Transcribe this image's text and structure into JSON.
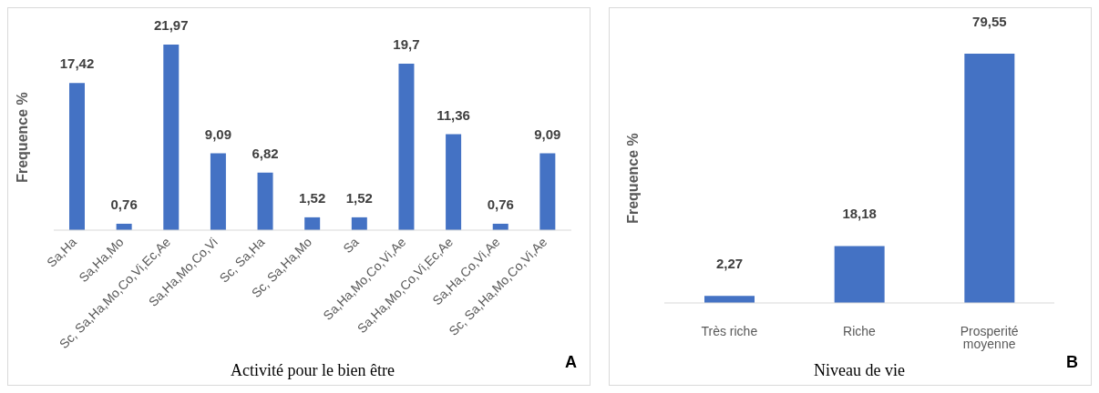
{
  "chart_data": [
    {
      "type": "bar",
      "xlabel": "Activité pour le bien être",
      "ylabel": "Frequence %",
      "categories": [
        "Sa,Ha",
        "Sa,Ha,Mo",
        "Sc, Sa,Ha,Mo,Co,Vi,Ec,Ae",
        "Sa,Ha,Mo,Co,Vi",
        "Sc, Sa,Ha",
        "Sc, Sa,Ha,Mo",
        "Sa",
        "Sa,Ha,Mo,Co,Vi,Ae",
        "Sa,Ha,Mo,Co,Vi,Ec,Ae",
        "Sa,Ha,Co,Vi,Ae",
        "Sc, Sa,Ha,Mo,Co,Vi,Ae"
      ],
      "values": [
        17.42,
        0.76,
        21.97,
        9.09,
        6.82,
        1.52,
        1.52,
        19.7,
        11.36,
        0.76,
        9.09
      ],
      "value_labels": [
        "17,42",
        "0,76",
        "21,97",
        "9,09",
        "6,82",
        "1,52",
        "1,52",
        "19,7",
        "11,36",
        "0,76",
        "9,09"
      ],
      "color": "#4472c4",
      "annotations": [
        "A"
      ]
    },
    {
      "type": "bar",
      "xlabel": "Niveau de vie",
      "ylabel": "Frequence %",
      "categories": [
        "Très riche",
        "Riche",
        "Prosperité moyenne"
      ],
      "values": [
        2.27,
        18.18,
        79.55
      ],
      "value_labels": [
        "2,27",
        "18,18",
        "79,55"
      ],
      "color": "#4472c4",
      "annotations": [
        "B"
      ]
    }
  ]
}
